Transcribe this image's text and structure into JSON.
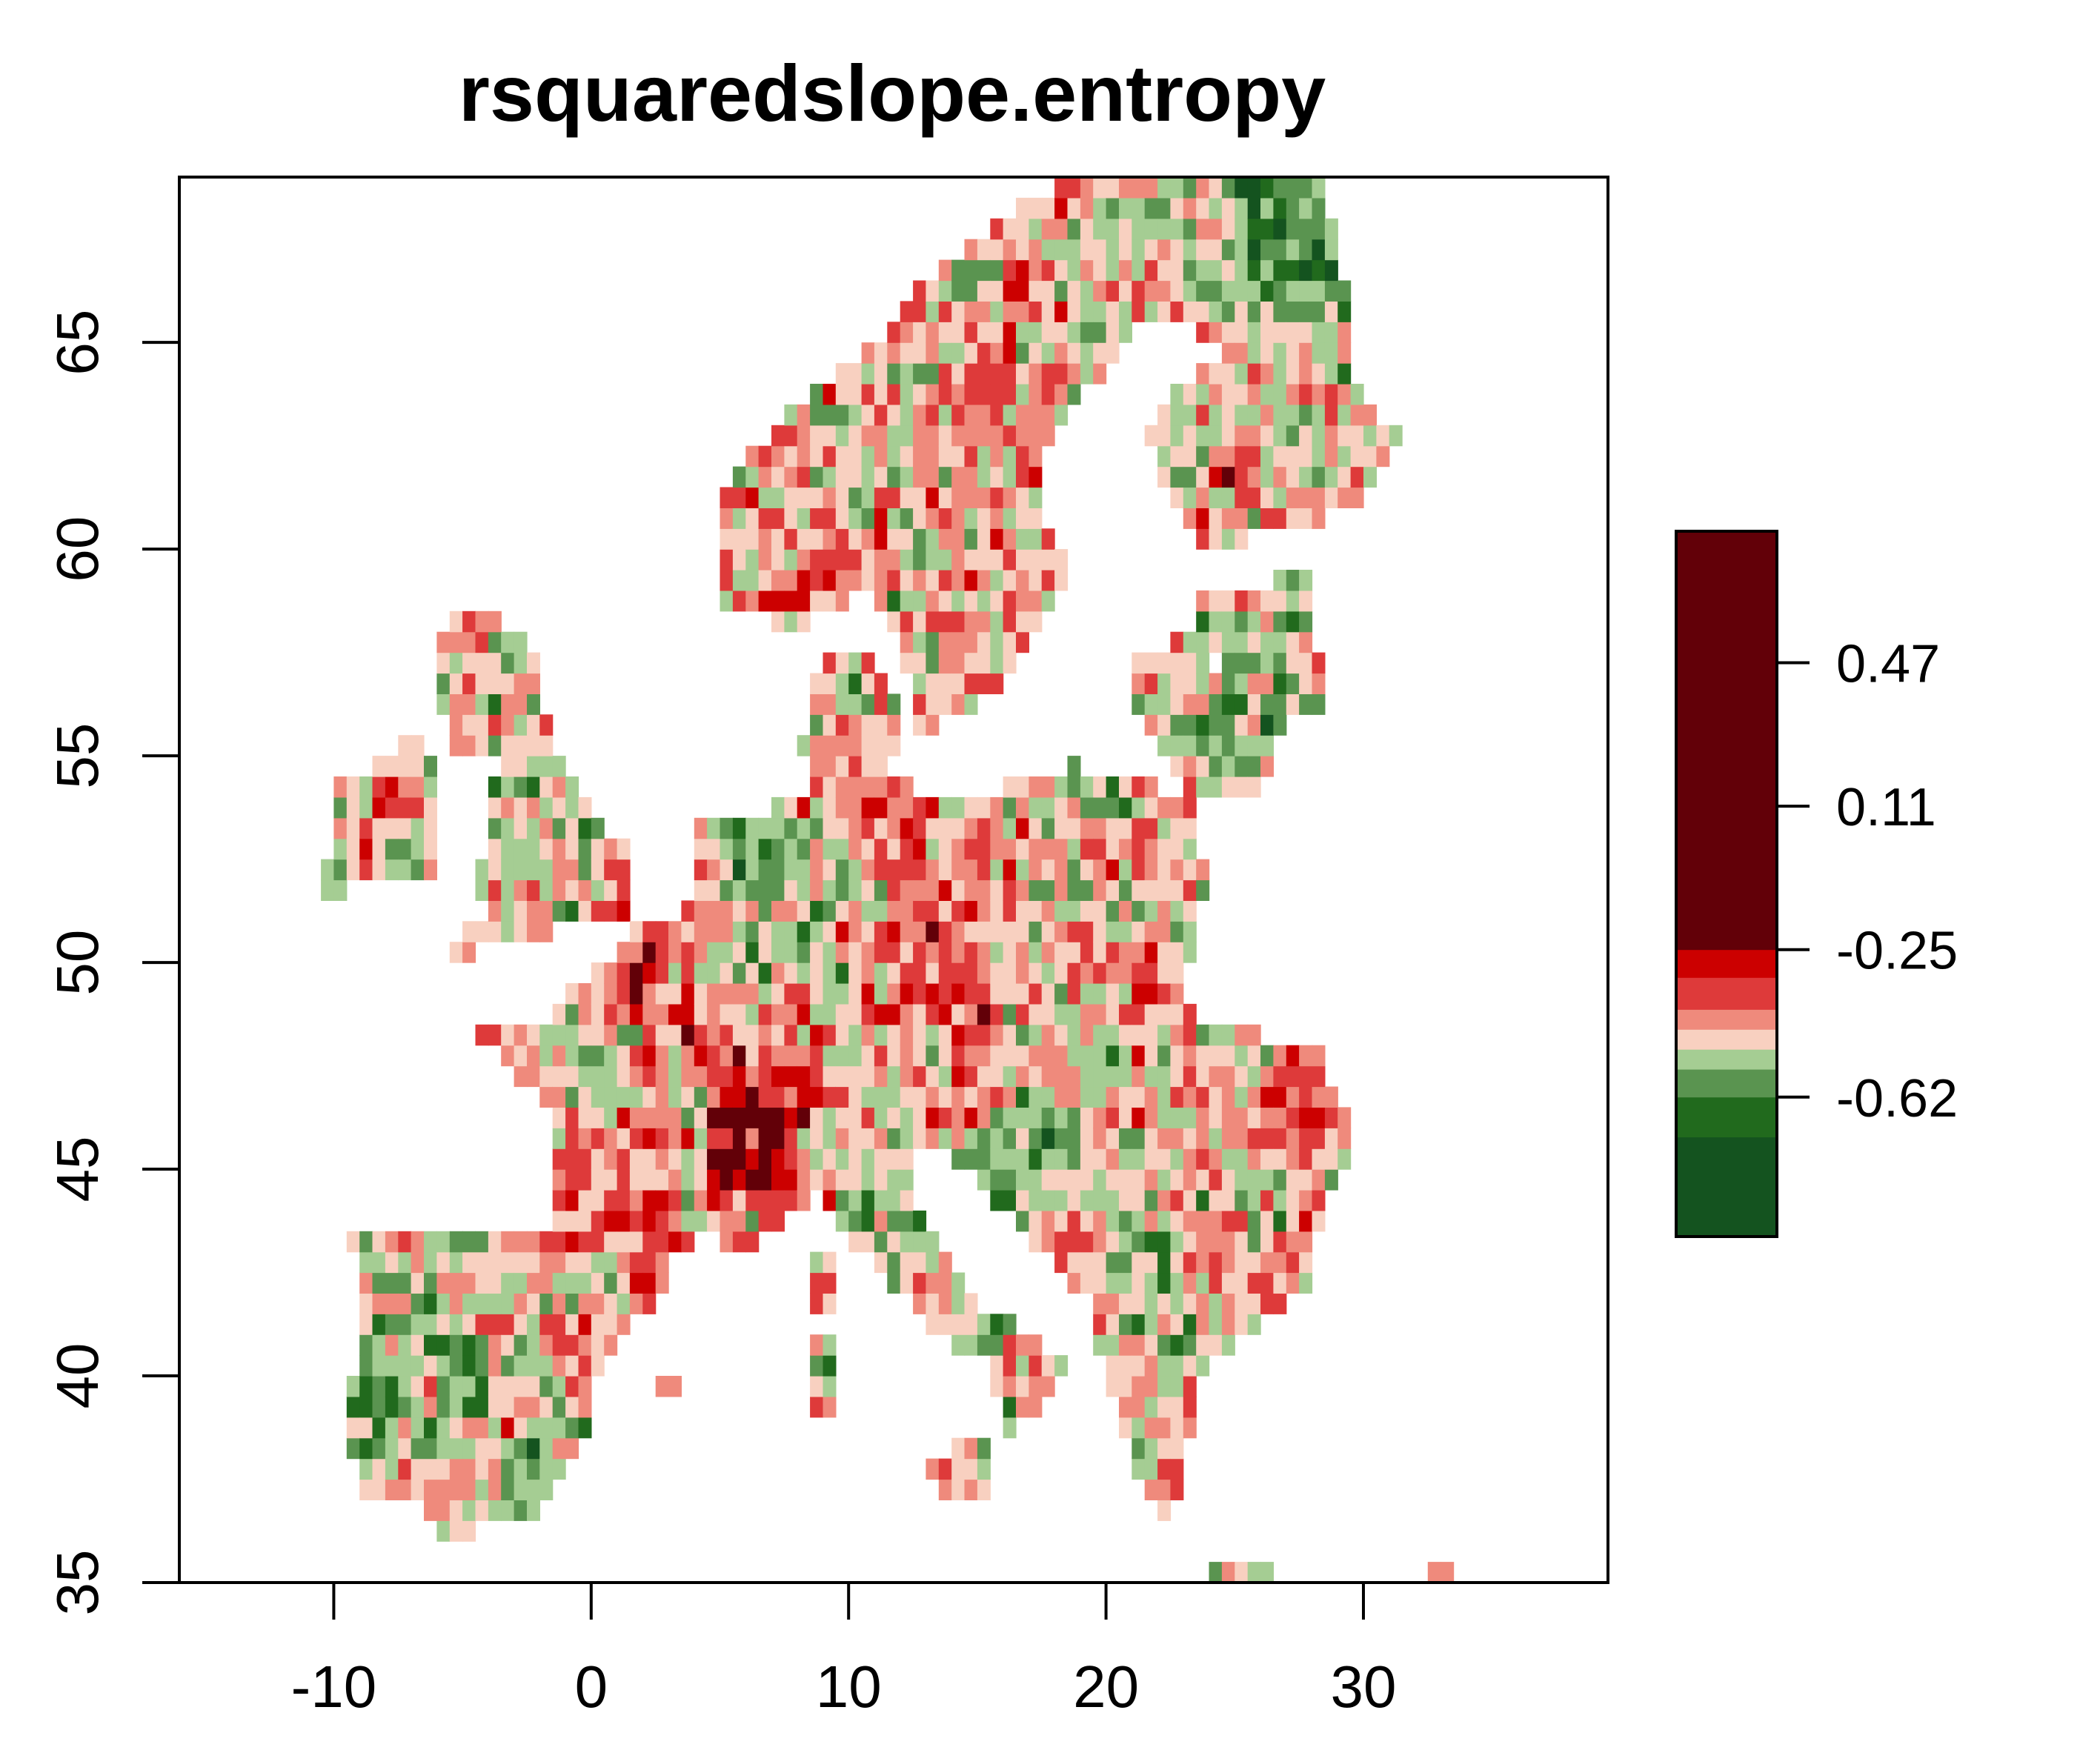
{
  "title": "rsquaredslope.entropy",
  "map": {
    "xlim": [
      -16,
      39.5
    ],
    "ylim": [
      35,
      69
    ],
    "x_ticks": [
      {
        "value": -10,
        "label": "-10"
      },
      {
        "value": 0,
        "label": "0"
      },
      {
        "value": 10,
        "label": "10"
      },
      {
        "value": 20,
        "label": "20"
      },
      {
        "value": 30,
        "label": "30"
      }
    ],
    "y_ticks": [
      {
        "value": 35,
        "label": "35"
      },
      {
        "value": 40,
        "label": "40"
      },
      {
        "value": 45,
        "label": "45"
      },
      {
        "value": 50,
        "label": "50"
      },
      {
        "value": 55,
        "label": "55"
      },
      {
        "value": 60,
        "label": "60"
      },
      {
        "value": 65,
        "label": "65"
      }
    ],
    "palette": [
      "#14531f",
      "#216a1d",
      "#5a9450",
      "#a5cd93",
      "#f8d0c0",
      "#ef8a7c",
      "#de3a3a",
      "#cc0000",
      "#620008"
    ]
  },
  "legend": {
    "range": [
      -0.97,
      0.8
    ],
    "bands": [
      {
        "from": -0.97,
        "to": -0.72,
        "color": "#14531f"
      },
      {
        "from": -0.72,
        "to": -0.62,
        "color": "#216a1d"
      },
      {
        "from": -0.62,
        "to": -0.55,
        "color": "#5a9450"
      },
      {
        "from": -0.55,
        "to": -0.5,
        "color": "#a5cd93"
      },
      {
        "from": -0.5,
        "to": -0.45,
        "color": "#f8d0c0"
      },
      {
        "from": -0.45,
        "to": -0.4,
        "color": "#ef8a7c"
      },
      {
        "from": -0.4,
        "to": -0.32,
        "color": "#de3a3a"
      },
      {
        "from": -0.32,
        "to": -0.25,
        "color": "#cc0000"
      },
      {
        "from": -0.25,
        "to": 0.8,
        "color": "#620008"
      }
    ],
    "ticks": [
      {
        "value": 0.47,
        "label": "0.47"
      },
      {
        "value": 0.11,
        "label": "0.11"
      },
      {
        "value": -0.25,
        "label": "-0.25"
      },
      {
        "value": -0.62,
        "label": "-0.62"
      }
    ]
  }
}
